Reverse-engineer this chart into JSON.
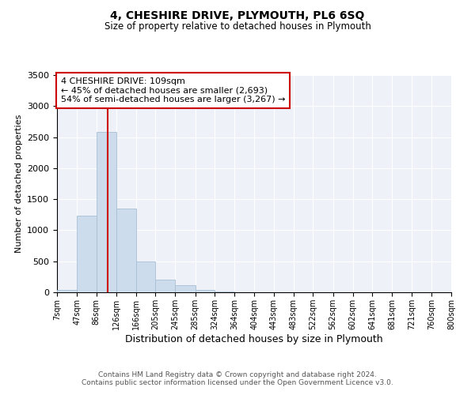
{
  "title": "4, CHESHIRE DRIVE, PLYMOUTH, PL6 6SQ",
  "subtitle": "Size of property relative to detached houses in Plymouth",
  "xlabel": "Distribution of detached houses by size in Plymouth",
  "ylabel": "Number of detached properties",
  "annotation_title": "4 CHESHIRE DRIVE: 109sqm",
  "annotation_line1": "← 45% of detached houses are smaller (2,693)",
  "annotation_line2": "54% of semi-detached houses are larger (3,267) →",
  "footer_line1": "Contains HM Land Registry data © Crown copyright and database right 2024.",
  "footer_line2": "Contains public sector information licensed under the Open Government Licence v3.0.",
  "bar_edges": [
    7,
    47,
    86,
    126,
    166,
    205,
    245,
    285,
    324,
    364,
    404,
    443,
    483,
    522,
    562,
    602,
    641,
    681,
    721,
    760,
    800
  ],
  "bar_heights": [
    40,
    1230,
    2580,
    1350,
    500,
    200,
    110,
    40,
    10,
    5,
    3,
    2,
    2,
    0,
    0,
    0,
    0,
    0,
    0,
    0
  ],
  "bar_color": "#ccdcec",
  "bar_edge_color": "#a8c0d4",
  "property_size": 109,
  "vline_color": "#cc0000",
  "annotation_box_color": "#cc0000",
  "background_color": "#eef2f8",
  "ylim": [
    0,
    3500
  ],
  "xlim": [
    7,
    800
  ],
  "tick_labels": [
    "7sqm",
    "47sqm",
    "86sqm",
    "126sqm",
    "166sqm",
    "205sqm",
    "245sqm",
    "285sqm",
    "324sqm",
    "364sqm",
    "404sqm",
    "443sqm",
    "483sqm",
    "522sqm",
    "562sqm",
    "602sqm",
    "641sqm",
    "681sqm",
    "721sqm",
    "760sqm",
    "800sqm"
  ]
}
